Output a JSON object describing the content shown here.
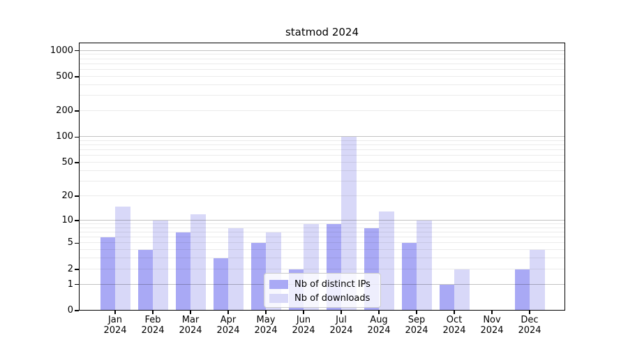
{
  "chart_data": {
    "type": "bar",
    "title": "statmod 2024",
    "categories": [
      "Jan 2024",
      "Feb 2024",
      "Mar 2024",
      "Apr 2024",
      "May 2024",
      "Jun 2024",
      "Jul 2024",
      "Aug 2024",
      "Sep 2024",
      "Oct 2024",
      "Nov 2024",
      "Dec 2024"
    ],
    "series": [
      {
        "name": "Nb of distinct IPs",
        "color": "#a9a9f5",
        "values": [
          6,
          4,
          7,
          3,
          5,
          2,
          9,
          8,
          5,
          1,
          0,
          2
        ]
      },
      {
        "name": "Nb of downloads",
        "color": "#d8d8f8",
        "values": [
          15,
          10,
          12,
          8,
          7,
          9,
          100,
          13,
          10,
          2,
          0,
          4
        ]
      }
    ],
    "xlabel": "",
    "ylabel": "",
    "yscale": "log1p",
    "yticks": [
      0,
      1,
      2,
      5,
      10,
      20,
      50,
      100,
      200,
      500,
      1000
    ],
    "ylim": [
      0,
      1240
    ],
    "grid": "horizontal major and minor gridlines",
    "legend_position": "lower center inside plot",
    "gridline_major_color": "#c2c2c2",
    "gridline_minor_color": "#ebebeb"
  }
}
